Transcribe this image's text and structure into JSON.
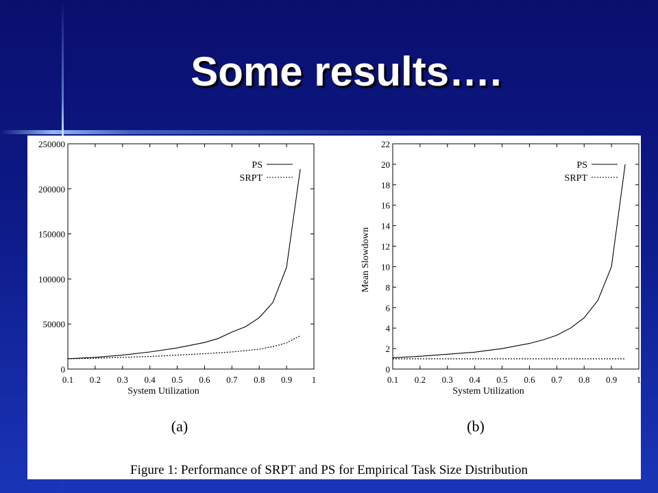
{
  "slide": {
    "title": "Some results…."
  },
  "figure": {
    "caption": "Figure 1: Performance of SRPT and PS for Empirical Task Size Distribution"
  },
  "chart_data": [
    {
      "type": "line",
      "panel_label": "(a)",
      "xlabel": "System Utilization",
      "ylabel": "",
      "xlim": [
        0.1,
        1
      ],
      "ylim": [
        0,
        250000
      ],
      "xticks": [
        "0.1",
        "0.2",
        "0.3",
        "0.4",
        "0.5",
        "0.6",
        "0.7",
        "0.8",
        "0.9",
        "1"
      ],
      "yticks": [
        "0",
        "50000",
        "100000",
        "150000",
        "200000",
        "250000"
      ],
      "grid": false,
      "legend": "top-right",
      "series": [
        {
          "name": "PS",
          "style": "solid",
          "x": [
            0.1,
            0.2,
            0.3,
            0.4,
            0.5,
            0.6,
            0.65,
            0.7,
            0.75,
            0.8,
            0.85,
            0.9,
            0.95
          ],
          "y": [
            11500,
            13000,
            15500,
            19000,
            23500,
            29500,
            34000,
            41000,
            47000,
            57000,
            74000,
            113000,
            222000
          ]
        },
        {
          "name": "SRPT",
          "style": "dotted",
          "x": [
            0.1,
            0.2,
            0.3,
            0.4,
            0.5,
            0.6,
            0.7,
            0.8,
            0.85,
            0.9,
            0.95
          ],
          "y": [
            11500,
            12000,
            13000,
            14000,
            15500,
            17000,
            19000,
            22000,
            25000,
            29000,
            37000
          ]
        }
      ]
    },
    {
      "type": "line",
      "panel_label": "(b)",
      "xlabel": "System Utilization",
      "ylabel": "Mean Slowdown",
      "xlim": [
        0.1,
        1
      ],
      "ylim": [
        0,
        22
      ],
      "xticks": [
        "0.1",
        "0.2",
        "0.3",
        "0.4",
        "0.5",
        "0.6",
        "0.7",
        "0.8",
        "0.9",
        "1"
      ],
      "yticks": [
        "0",
        "2",
        "4",
        "6",
        "8",
        "10",
        "12",
        "14",
        "16",
        "18",
        "20",
        "22"
      ],
      "grid": false,
      "legend": "top-right",
      "series": [
        {
          "name": "PS",
          "style": "solid",
          "x": [
            0.1,
            0.2,
            0.3,
            0.4,
            0.5,
            0.6,
            0.65,
            0.7,
            0.75,
            0.8,
            0.85,
            0.9,
            0.95
          ],
          "y": [
            1.1,
            1.25,
            1.45,
            1.65,
            2.0,
            2.5,
            2.85,
            3.3,
            4.0,
            5.0,
            6.7,
            10.0,
            20.0
          ]
        },
        {
          "name": "SRPT",
          "style": "dotted",
          "x": [
            0.1,
            0.2,
            0.3,
            0.4,
            0.5,
            0.6,
            0.7,
            0.8,
            0.9,
            0.95
          ],
          "y": [
            1.0,
            1.0,
            1.0,
            1.0,
            1.0,
            1.0,
            1.0,
            1.0,
            1.0,
            1.0
          ]
        }
      ]
    }
  ]
}
